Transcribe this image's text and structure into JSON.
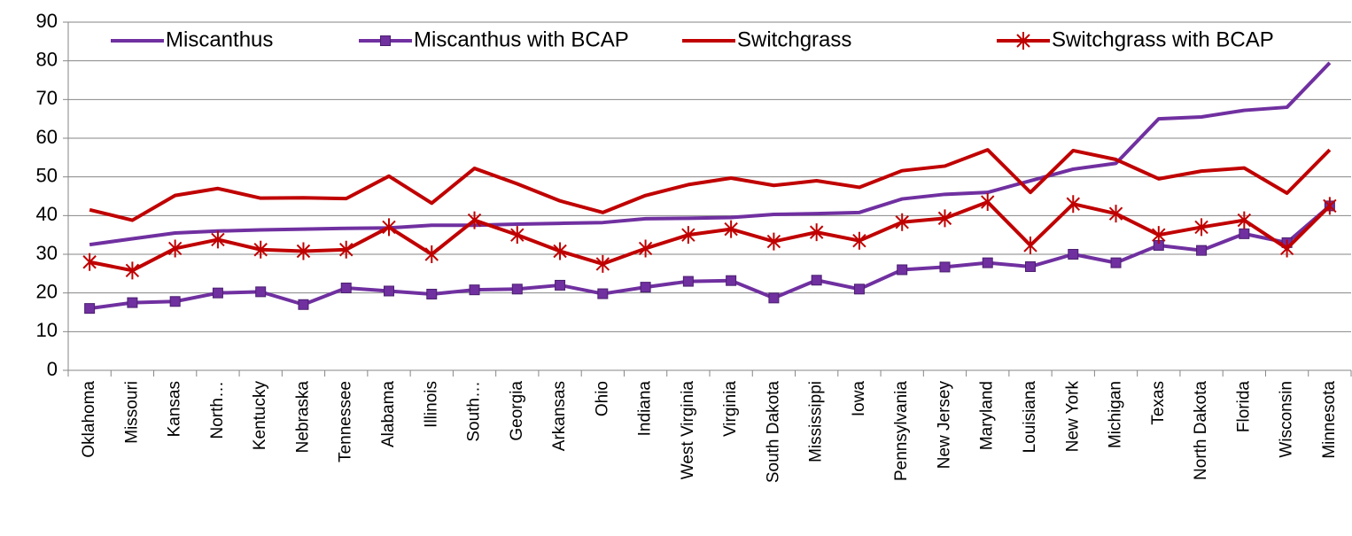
{
  "chart_data": {
    "type": "line",
    "categories": [
      "Oklahoma",
      "Missouri",
      "Kansas",
      "North…",
      "Kentucky",
      "Nebraska",
      "Tennessee",
      "Alabama",
      "Illinois",
      "South…",
      "Georgia",
      "Arkansas",
      "Ohio",
      "Indiana",
      "West Virginia",
      "Virginia",
      "South Dakota",
      "Mississippi",
      "Iowa",
      "Pennsylvania",
      "New Jersey",
      "Maryland",
      "Louisiana",
      "New York",
      "Michigan",
      "Texas",
      "North Dakota",
      "Florida",
      "Wisconsin",
      "Minnesota"
    ],
    "series": [
      {
        "name": "Miscanthus",
        "color": "#7030a0",
        "marker": "none",
        "values": [
          32.5,
          34,
          35.5,
          36,
          36.3,
          36.5,
          36.7,
          36.8,
          37.5,
          37.5,
          37.8,
          38,
          38.2,
          39.2,
          39.3,
          39.5,
          40.3,
          40.5,
          40.8,
          44.3,
          45.5,
          46,
          49,
          52,
          53.5,
          65,
          65.5,
          67.2,
          68,
          79.5
        ]
      },
      {
        "name": "Miscanthus with BCAP",
        "color": "#7030a0",
        "marker": "square",
        "values": [
          16,
          17.5,
          17.8,
          20,
          20.3,
          17,
          21.3,
          20.5,
          19.7,
          20.8,
          21,
          22,
          19.8,
          21.5,
          23,
          23.2,
          18.7,
          23.3,
          21,
          26,
          26.7,
          27.8,
          26.8,
          30,
          27.8,
          32.3,
          31,
          35.3,
          33,
          42.5
        ]
      },
      {
        "name": "Switchgrass",
        "color": "#c00000",
        "marker": "none",
        "values": [
          41.5,
          38.8,
          45.2,
          47,
          44.5,
          44.6,
          44.4,
          50.2,
          43.2,
          52.2,
          48.2,
          43.8,
          40.8,
          45.2,
          48,
          49.7,
          47.8,
          49,
          47.3,
          51.6,
          52.8,
          57,
          46,
          56.8,
          54.5,
          49.5,
          51.5,
          52.3,
          45.8,
          57
        ]
      },
      {
        "name": "Switchgrass with BCAP",
        "color": "#c00000",
        "marker": "star",
        "values": [
          28,
          25.8,
          31.5,
          33.8,
          31.2,
          30.8,
          31.2,
          37,
          30,
          38.8,
          35,
          30.8,
          27.5,
          31.5,
          35,
          36.5,
          33.3,
          35.7,
          33.5,
          38.3,
          39.3,
          43.5,
          32.3,
          43,
          40.5,
          35,
          37,
          38.8,
          31.5,
          42.5
        ]
      }
    ],
    "ylim": [
      0,
      90
    ],
    "yticks": [
      0,
      10,
      20,
      30,
      40,
      50,
      60,
      70,
      80,
      90
    ],
    "grid": true,
    "legend": "top"
  }
}
